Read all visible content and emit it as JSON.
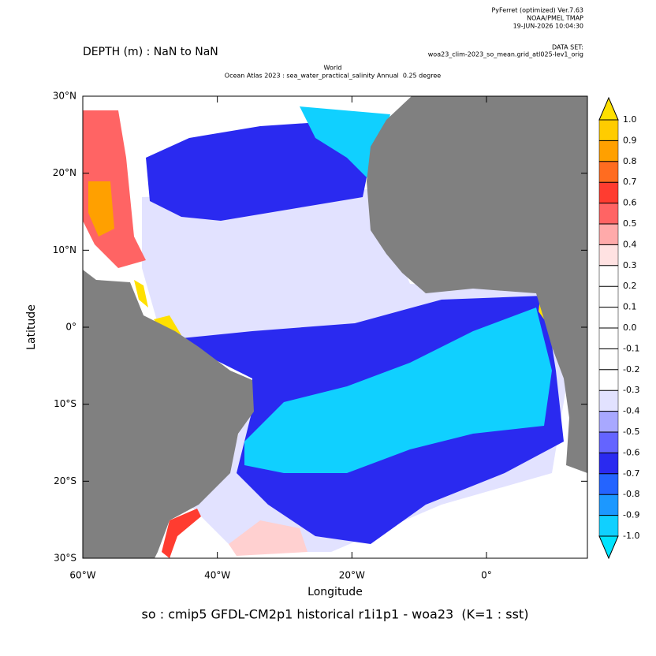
{
  "chart_data": {
    "type": "map",
    "header": [
      "PyFerret (optimized) Ver.7.63",
      "NOAA/PMEL TMAP",
      "19-JUN-2026 10:04:30"
    ],
    "dataset_label": "DATA SET:",
    "dataset": "woa23_clim-2023_so_mean.grid_atl025-lev1_orig",
    "title": "DEPTH (m) : NaN to NaN",
    "subtitle": [
      "World",
      "Ocean Atlas 2023 : sea_water_practical_salinity Annual  0.25 degree"
    ],
    "xlabel": "Longitude",
    "ylabel": "Latitude",
    "caption": "so : cmip5 GFDL-CM2p1 historical r1i1p1 - woa23  (K=1 : sst)",
    "xlim": [
      -60,
      15
    ],
    "ylim": [
      -30,
      30
    ],
    "xticks": [
      {
        "value": -60,
        "label": "60°W"
      },
      {
        "value": -40,
        "label": "40°W"
      },
      {
        "value": -20,
        "label": "20°W"
      },
      {
        "value": 0,
        "label": "0°"
      }
    ],
    "yticks": [
      {
        "value": 30,
        "label": "30°N"
      },
      {
        "value": 20,
        "label": "20°N"
      },
      {
        "value": 10,
        "label": "10°N"
      },
      {
        "value": 0,
        "label": "0°"
      },
      {
        "value": -10,
        "label": "10°S"
      },
      {
        "value": -20,
        "label": "20°S"
      },
      {
        "value": -30,
        "label": "30°S"
      }
    ],
    "levels": [
      {
        "value": -1,
        "label": "-1.0"
      },
      -0.9,
      -0.8,
      -0.7,
      -0.6,
      -0.5,
      -0.4,
      -0.3,
      -0.2,
      -0.1,
      {
        "value": 0,
        "label": "0.0"
      },
      0.1,
      0.2,
      0.3,
      0.4,
      0.5,
      0.6,
      0.7,
      0.8,
      0.9,
      {
        "value": 1,
        "label": "1.0"
      }
    ],
    "colors": [
      "#00e4ff",
      "#10d0ff",
      "#1c98ff",
      "#2464ff",
      "#2a2af0",
      "#6464ff",
      "#a8a8ff",
      "#e2e2ff",
      "#ffffff",
      "#ffffff",
      "#ffffff",
      "#ffffff",
      "#ffffff",
      "#ffffff",
      "#ffe2e2",
      "#ffaaaa",
      "#ff6464",
      "#ff3c30",
      "#ff6c20",
      "#ffa000",
      "#ffcc00",
      "#ffe000"
    ]
  }
}
